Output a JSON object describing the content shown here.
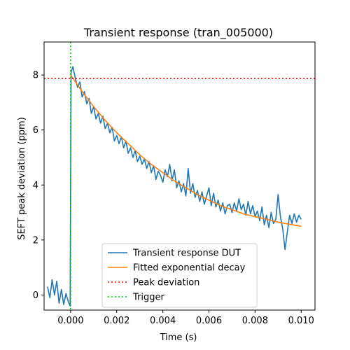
{
  "chart_data": {
    "type": "line",
    "title": "Transient response (tran_005000)",
    "xlabel": "Time (s)",
    "ylabel": "SEFT peak deviation (ppm)",
    "xlim": [
      -0.00115,
      0.0106
    ],
    "ylim": [
      -0.55,
      9.2
    ],
    "xticks": [
      {
        "value": 0.0,
        "label": "0.000"
      },
      {
        "value": 0.002,
        "label": "0.002"
      },
      {
        "value": 0.004,
        "label": "0.004"
      },
      {
        "value": 0.006,
        "label": "0.006"
      },
      {
        "value": 0.008,
        "label": "0.008"
      },
      {
        "value": 0.01,
        "label": "0.010"
      }
    ],
    "yticks": [
      {
        "value": 0,
        "label": "0"
      },
      {
        "value": 2,
        "label": "2"
      },
      {
        "value": 4,
        "label": "4"
      },
      {
        "value": 6,
        "label": "6"
      },
      {
        "value": 8,
        "label": "8"
      }
    ],
    "grid": false,
    "legend_position": "lower-center",
    "series": [
      {
        "name": "Transient response DUT",
        "color": "#1f77b4",
        "style": "solid",
        "x": [
          -0.001,
          -0.0009,
          -0.0008,
          -0.0007,
          -0.0006,
          -0.0005,
          -0.0004,
          -0.0003,
          -0.0002,
          -0.0001,
          -2e-05,
          2e-05,
          0.0001,
          0.0002,
          0.0003,
          0.0004,
          0.0005,
          0.0006,
          0.0007,
          0.0008,
          0.0009,
          0.001,
          0.0011,
          0.0012,
          0.0013,
          0.0014,
          0.0015,
          0.0016,
          0.0017,
          0.0018,
          0.0019,
          0.002,
          0.0021,
          0.0022,
          0.0023,
          0.0024,
          0.0025,
          0.0026,
          0.0027,
          0.0028,
          0.0029,
          0.003,
          0.0031,
          0.0032,
          0.0033,
          0.0034,
          0.0035,
          0.0036,
          0.0037,
          0.0038,
          0.0039,
          0.004,
          0.0041,
          0.0042,
          0.0043,
          0.0044,
          0.0045,
          0.0046,
          0.0047,
          0.0048,
          0.0049,
          0.005,
          0.0051,
          0.0052,
          0.0053,
          0.0054,
          0.0055,
          0.0056,
          0.0057,
          0.0058,
          0.0059,
          0.006,
          0.0061,
          0.0062,
          0.0063,
          0.0064,
          0.0065,
          0.0066,
          0.0067,
          0.0068,
          0.0069,
          0.007,
          0.0071,
          0.0072,
          0.0073,
          0.0074,
          0.0075,
          0.0076,
          0.0077,
          0.0078,
          0.0079,
          0.008,
          0.0081,
          0.0082,
          0.0083,
          0.0084,
          0.0085,
          0.0086,
          0.0087,
          0.0088,
          0.0089,
          0.009,
          0.0091,
          0.0092,
          0.0093,
          0.0094,
          0.0095,
          0.0096,
          0.0097,
          0.0098,
          0.0099,
          0.01
        ],
        "y": [
          0.3,
          -0.1,
          0.55,
          0.0,
          0.5,
          -0.3,
          0.2,
          -0.35,
          0.05,
          -0.25,
          -0.4,
          8.1,
          8.3,
          7.9,
          7.55,
          7.75,
          7.2,
          7.4,
          6.95,
          7.15,
          6.6,
          6.85,
          6.4,
          6.6,
          6.25,
          6.5,
          6.05,
          6.25,
          5.9,
          6.1,
          5.6,
          5.8,
          5.5,
          5.75,
          5.35,
          5.6,
          5.15,
          5.35,
          5.0,
          5.25,
          4.85,
          5.05,
          4.75,
          4.95,
          4.6,
          4.85,
          4.45,
          4.7,
          4.2,
          4.5,
          4.35,
          4.1,
          4.55,
          4.3,
          4.75,
          4.15,
          4.55,
          3.9,
          4.15,
          3.75,
          4.05,
          3.6,
          4.6,
          3.7,
          4.05,
          3.55,
          3.8,
          3.4,
          3.75,
          3.3,
          3.6,
          3.9,
          3.25,
          3.7,
          3.2,
          3.45,
          3.05,
          3.35,
          2.95,
          3.25,
          3.3,
          3.0,
          3.35,
          3.05,
          3.5,
          3.1,
          3.3,
          2.9,
          3.4,
          2.95,
          3.25,
          2.85,
          3.05,
          2.7,
          3.2,
          2.55,
          2.9,
          2.45,
          3.0,
          2.6,
          2.75,
          3.65,
          2.85,
          2.4,
          1.65,
          2.3,
          2.9,
          2.6,
          2.95,
          2.65,
          2.9,
          2.75
        ]
      },
      {
        "name": "Fitted exponential decay",
        "color": "#ff7f0e",
        "style": "solid",
        "x": [
          0.0,
          0.0005,
          0.001,
          0.0015,
          0.002,
          0.0025,
          0.003,
          0.0035,
          0.004,
          0.0045,
          0.005,
          0.0055,
          0.006,
          0.0065,
          0.007,
          0.0075,
          0.008,
          0.0085,
          0.009,
          0.0095,
          0.01
        ],
        "y": [
          8.0,
          7.4,
          6.85,
          6.35,
          5.9,
          5.5,
          5.1,
          4.75,
          4.45,
          4.15,
          3.9,
          3.65,
          3.45,
          3.25,
          3.1,
          2.95,
          2.85,
          2.75,
          2.65,
          2.57,
          2.5
        ]
      }
    ],
    "reference_lines": [
      {
        "name": "Peak deviation",
        "orientation": "horizontal",
        "value": 7.87,
        "color": "#ff0000",
        "style": "dotted"
      },
      {
        "name": "Trigger",
        "orientation": "vertical",
        "value": 0.0,
        "color": "#00cc00",
        "style": "dotted"
      }
    ]
  }
}
